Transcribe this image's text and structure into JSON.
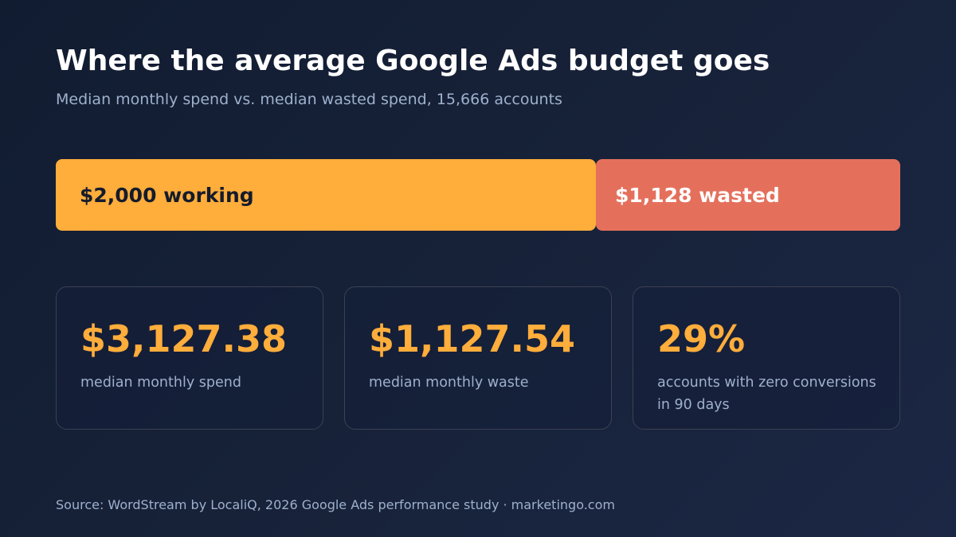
{
  "title": "Where the average Google Ads budget goes",
  "subtitle": "Median monthly spend vs. median wasted spend, 15,666 accounts",
  "colors": {
    "working": "#ffad3b",
    "wasted": "#e4705c",
    "accent": "#ffad3b"
  },
  "chart_data": {
    "type": "bar",
    "stacked": true,
    "orientation": "horizontal",
    "title": "Where the average Google Ads budget goes",
    "subtitle": "Median monthly spend vs. median wasted spend, 15,666 accounts",
    "series": [
      {
        "label": "$2,000 working",
        "value": 2000
      },
      {
        "label": "$1,128 wasted",
        "value": 1128
      }
    ]
  },
  "stats": [
    {
      "value": "$3,127.38",
      "label": "median monthly spend"
    },
    {
      "value": "$1,127.54",
      "label": "median monthly waste"
    },
    {
      "value": "29%",
      "label": "accounts with zero conversions in 90 days"
    }
  ],
  "source": "Source: WordStream by LocaliQ, 2026 Google Ads performance study · marketingo.com"
}
